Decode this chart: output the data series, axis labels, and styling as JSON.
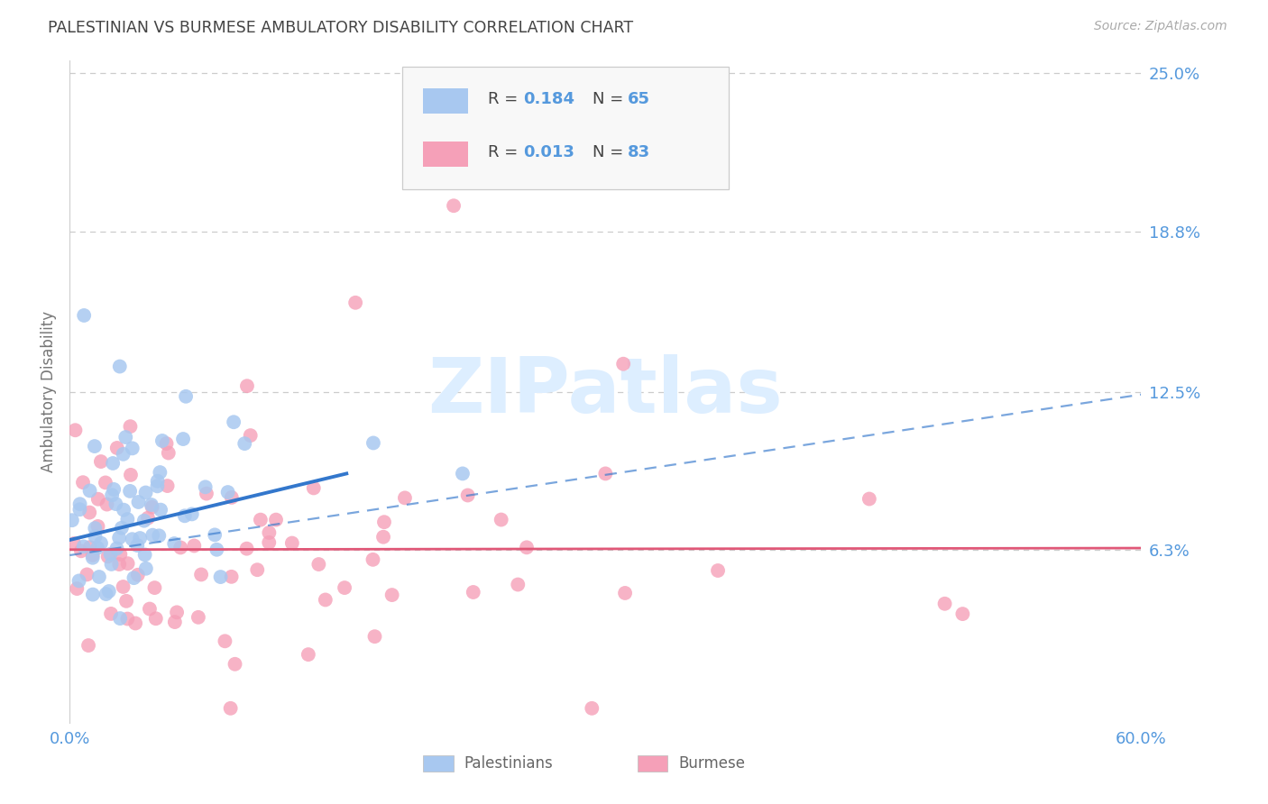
{
  "title": "PALESTINIAN VS BURMESE AMBULATORY DISABILITY CORRELATION CHART",
  "source": "Source: ZipAtlas.com",
  "ylabel": "Ambulatory Disability",
  "xlim": [
    0.0,
    0.6
  ],
  "ylim": [
    -0.005,
    0.255
  ],
  "yticks": [
    0.063,
    0.125,
    0.188,
    0.25
  ],
  "ytick_labels": [
    "6.3%",
    "12.5%",
    "18.8%",
    "25.0%"
  ],
  "xticks": [
    0.0,
    0.1,
    0.2,
    0.3,
    0.4,
    0.5,
    0.6
  ],
  "xtick_labels": [
    "0.0%",
    "",
    "",
    "",
    "",
    "",
    "60.0%"
  ],
  "palestinian_color": "#a8c8f0",
  "burmese_color": "#f5a0b8",
  "trend_pal_color": "#3377cc",
  "trend_bur_color": "#e05878",
  "background_color": "#ffffff",
  "grid_color": "#cccccc",
  "title_color": "#444444",
  "axis_label_color": "#777777",
  "tick_color": "#5599dd",
  "watermark_text": "ZIPatlas",
  "watermark_color": "#ddeeff",
  "legend_value_color": "#5599dd",
  "legend_label_color": "#444444",
  "pal_trend_x0": 0.0,
  "pal_trend_x1": 0.155,
  "pal_trend_y0": 0.067,
  "pal_trend_y1": 0.093,
  "bur_trend_x0": 0.0,
  "bur_trend_x1": 0.6,
  "bur_trend_y0": 0.0632,
  "bur_trend_y1": 0.0638,
  "dash_trend_x0": 0.0,
  "dash_trend_x1": 0.6,
  "dash_trend_y0": 0.061,
  "dash_trend_y1": 0.124
}
